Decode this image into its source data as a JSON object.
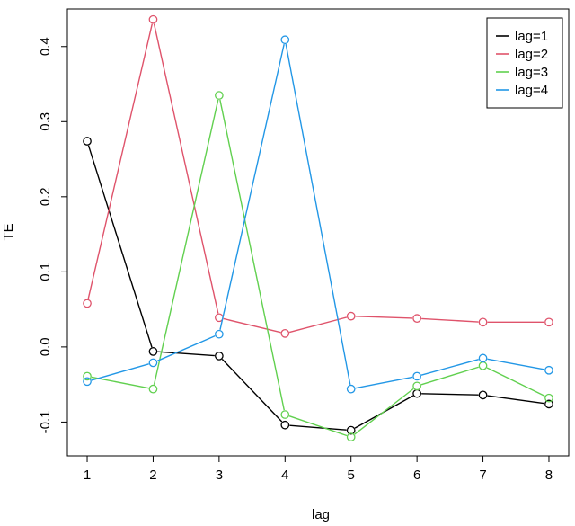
{
  "chart_data": {
    "type": "line",
    "title": "",
    "xlabel": "lag",
    "ylabel": "TE",
    "x": [
      1,
      2,
      3,
      4,
      5,
      6,
      7,
      8
    ],
    "xticks": [
      "1",
      "2",
      "3",
      "4",
      "5",
      "6",
      "7",
      "8"
    ],
    "yticks": [
      -0.1,
      0.0,
      0.1,
      0.2,
      0.3,
      0.4
    ],
    "ytick_labels": [
      "-0.1",
      "0.0",
      "0.1",
      "0.2",
      "0.3",
      "0.4"
    ],
    "xlim": [
      0.7,
      8.3
    ],
    "ylim": [
      -0.145,
      0.45
    ],
    "grid": false,
    "legend_position": "top-right",
    "markers": "open-circle",
    "series": [
      {
        "name": "lag=1",
        "color": "#000000",
        "values": [
          0.274,
          -0.006,
          -0.012,
          -0.104,
          -0.111,
          -0.062,
          -0.064,
          -0.076
        ]
      },
      {
        "name": "lag=2",
        "color": "#DF536B",
        "values": [
          0.058,
          0.436,
          0.039,
          0.018,
          0.041,
          0.038,
          0.033,
          0.033
        ]
      },
      {
        "name": "lag=3",
        "color": "#61D04F",
        "values": [
          -0.039,
          -0.056,
          0.335,
          -0.09,
          -0.12,
          -0.052,
          -0.025,
          -0.068
        ]
      },
      {
        "name": "lag=4",
        "color": "#2297E6",
        "values": [
          -0.046,
          -0.021,
          0.017,
          0.409,
          -0.056,
          -0.039,
          -0.015,
          -0.031
        ]
      }
    ]
  }
}
